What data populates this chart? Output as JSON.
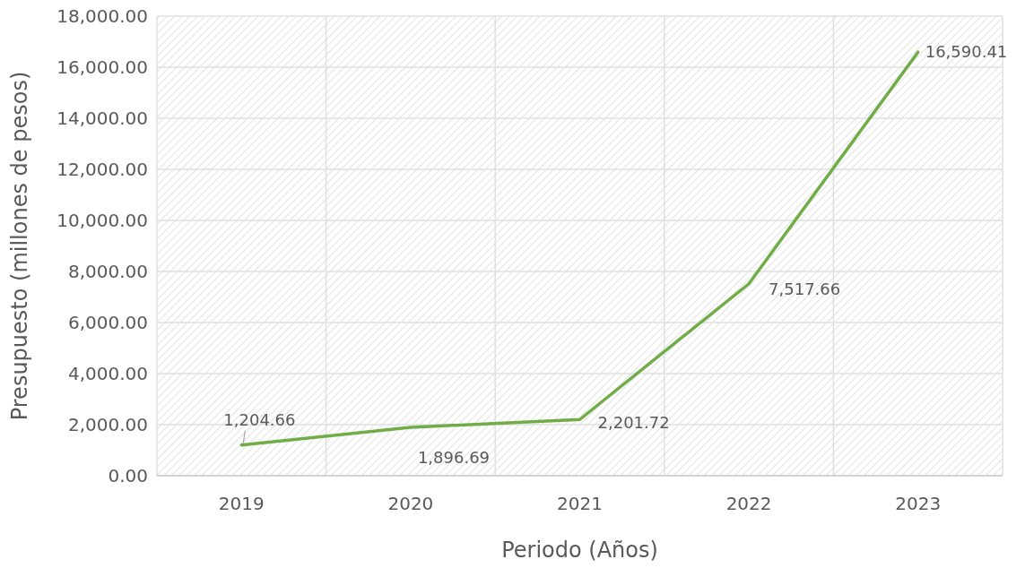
{
  "chart_data": {
    "type": "line",
    "xlabel": "Periodo (Años)",
    "ylabel": "Presupuesto (millones de pesos)",
    "categories": [
      "2019",
      "2020",
      "2021",
      "2022",
      "2023"
    ],
    "series": [
      {
        "color": "#70ad47",
        "values": [
          1204.66,
          1896.69,
          2201.72,
          7517.66,
          16590.41
        ],
        "value_labels": [
          "1,204.66",
          "1,896.69",
          "2,201.72",
          "7,517.66",
          "16,590.41"
        ]
      }
    ],
    "ylim": [
      0,
      18000
    ],
    "yticks": [
      {
        "value": 0,
        "label": "0.00"
      },
      {
        "value": 2000,
        "label": "2,000.00"
      },
      {
        "value": 4000,
        "label": "4,000.00"
      },
      {
        "value": 6000,
        "label": "6,000.00"
      },
      {
        "value": 8000,
        "label": "8,000.00"
      },
      {
        "value": 10000,
        "label": "10,000.00"
      },
      {
        "value": 12000,
        "label": "12,000.00"
      },
      {
        "value": 14000,
        "label": "14,000.00"
      },
      {
        "value": 16000,
        "label": "16,000.00"
      },
      {
        "value": 18000,
        "label": "18,000.00"
      }
    ],
    "grid": true,
    "marker": "none",
    "line_style": "solid"
  }
}
